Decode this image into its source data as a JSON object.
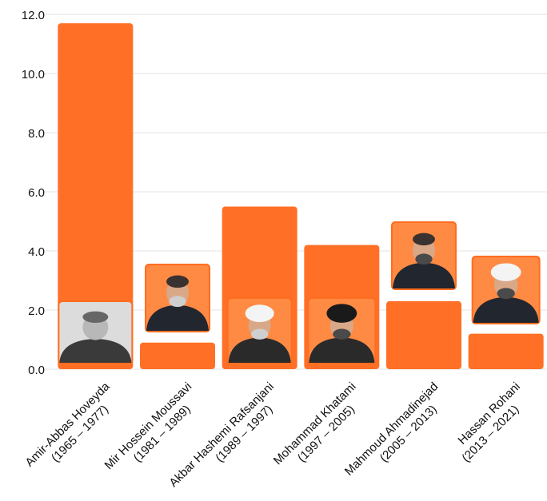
{
  "chart_data": {
    "type": "bar",
    "categories": [
      "Amir-Abbas Hoveyda (1965 – 1977)",
      "Mir Hossein Moussavi (1981 – 1989)",
      "Akbar Hashemi Rafsanjani (1989 – 1997)",
      "Mohammad Khatami (1997 – 2005)",
      "Mahmoud Ahmadinejad (2005 – 2013)",
      "Hassan Rohani (2013 – 2021)"
    ],
    "category_lines": [
      [
        "Amir-Abbas Hoveyda",
        "(1965 – 1977)"
      ],
      [
        "Mir Hossein Moussavi",
        "(1981 – 1989)"
      ],
      [
        "Akbar Hashemi Rafsanjani",
        "(1989 – 1997)"
      ],
      [
        "Mohammad Khatami",
        "(1997 – 2005)"
      ],
      [
        "Mahmoud Ahmadinejad",
        "(2005 – 2013)"
      ],
      [
        "Hassan Rohani",
        "(2013 – 2021)"
      ]
    ],
    "values": [
      11.7,
      0.9,
      5.5,
      4.2,
      2.3,
      1.2
    ],
    "ylim": [
      0,
      12
    ],
    "yticks": [
      "0.0",
      "2.0",
      "4.0",
      "6.0",
      "8.0",
      "10.0",
      "12.0"
    ],
    "grid": true,
    "bar_color": "#FF7026",
    "photos": [
      "portrait-icon",
      "portrait-icon",
      "portrait-icon",
      "portrait-icon",
      "portrait-icon",
      "portrait-icon"
    ]
  }
}
